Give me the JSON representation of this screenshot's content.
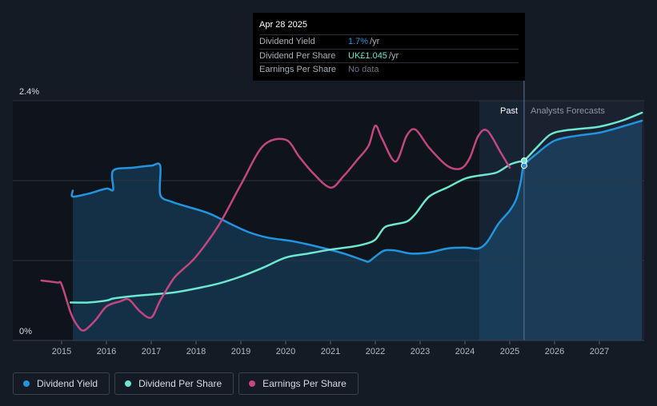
{
  "tooltip": {
    "date": "Apr 28 2025",
    "rows": [
      {
        "label": "Dividend Yield",
        "value": "1.7%",
        "unit": "/yr",
        "color": "#2394df"
      },
      {
        "label": "Dividend Per Share",
        "value": "UK£1.045",
        "unit": "/yr",
        "color": "#6ee7d0"
      },
      {
        "label": "Earnings Per Share",
        "value": "No data",
        "unit": "",
        "color": "#6b7280"
      }
    ]
  },
  "legend": [
    {
      "label": "Dividend Yield",
      "color": "#2394df"
    },
    {
      "label": "Dividend Per Share",
      "color": "#6ee7d0"
    },
    {
      "label": "Earnings Per Share",
      "color": "#c2467f"
    }
  ],
  "chart_data": {
    "type": "line",
    "y_axis_labels": {
      "top": "2.4%",
      "bottom": "0%"
    },
    "ylim_percent": [
      0,
      2.4
    ],
    "xlim": [
      2014.55,
      2027.95
    ],
    "x_ticks": [
      "2015",
      "2016",
      "2017",
      "2018",
      "2019",
      "2020",
      "2021",
      "2022",
      "2023",
      "2024",
      "2025",
      "2026",
      "2027"
    ],
    "past_label": "Past",
    "forecast_label": "Analysts Forecasts",
    "forecast_start": 2025.32,
    "highlight_start": 2024.32,
    "colors": {
      "background": "#151b24",
      "past_area": "#0f141b",
      "forecast_area": "#1a2230",
      "grid": "#2e3540",
      "axis_text": "#b4bbc4"
    },
    "series": [
      {
        "name": "Dividend Yield",
        "color": "#2394df",
        "fill": true,
        "unit": "% (of 2.4% scale)",
        "x": [
          2015.25,
          2015.25,
          2015.6,
          2016.0,
          2016.15,
          2016.15,
          2016.6,
          2017.0,
          2017.2,
          2017.2,
          2017.45,
          2017.8,
          2018.3,
          2018.8,
          2019.2,
          2019.6,
          2020.2,
          2020.7,
          2021.3,
          2021.75,
          2021.85,
          2022.0,
          2022.2,
          2022.45,
          2022.8,
          2023.2,
          2023.6,
          2024.0,
          2024.3,
          2024.5,
          2024.75,
          2025.0,
          2025.15,
          2025.25,
          2025.32,
          2025.6,
          2026.0,
          2026.5,
          2027.0,
          2027.5,
          2027.95
        ],
        "y": [
          1.5,
          1.44,
          1.47,
          1.52,
          1.51,
          1.7,
          1.73,
          1.75,
          1.75,
          1.46,
          1.39,
          1.34,
          1.27,
          1.16,
          1.08,
          1.03,
          0.99,
          0.94,
          0.87,
          0.8,
          0.79,
          0.84,
          0.9,
          0.9,
          0.87,
          0.88,
          0.92,
          0.93,
          0.92,
          0.99,
          1.17,
          1.3,
          1.42,
          1.6,
          1.75,
          1.87,
          2.0,
          2.05,
          2.08,
          2.14,
          2.2
        ]
      },
      {
        "name": "Dividend Per Share",
        "color": "#6ee7d0",
        "fill": false,
        "unit": "% (of 2.4% scale)",
        "x": [
          2015.2,
          2015.6,
          2016.0,
          2016.15,
          2016.5,
          2017.0,
          2017.5,
          2018.0,
          2018.5,
          2019.0,
          2019.5,
          2020.0,
          2020.5,
          2021.0,
          2021.5,
          2021.8,
          2022.0,
          2022.2,
          2022.4,
          2022.7,
          2022.9,
          2023.2,
          2023.6,
          2024.0,
          2024.3,
          2024.7,
          2025.0,
          2025.2,
          2025.32,
          2025.6,
          2025.9,
          2026.2,
          2026.6,
          2027.0,
          2027.5,
          2027.95
        ],
        "y": [
          0.38,
          0.38,
          0.4,
          0.42,
          0.44,
          0.46,
          0.48,
          0.52,
          0.57,
          0.64,
          0.73,
          0.83,
          0.87,
          0.91,
          0.94,
          0.97,
          1.01,
          1.13,
          1.16,
          1.19,
          1.27,
          1.44,
          1.53,
          1.62,
          1.65,
          1.68,
          1.76,
          1.79,
          1.8,
          1.93,
          2.06,
          2.1,
          2.12,
          2.14,
          2.2,
          2.28
        ]
      },
      {
        "name": "Earnings Per Share",
        "color": "#c2467f",
        "fill": false,
        "unit": "% (of 2.4% scale)",
        "x": [
          2014.55,
          2014.9,
          2015.0,
          2015.2,
          2015.35,
          2015.5,
          2015.75,
          2016.0,
          2016.3,
          2016.5,
          2016.75,
          2017.0,
          2017.2,
          2017.5,
          2017.7,
          2018.0,
          2018.5,
          2019.0,
          2019.5,
          2020.0,
          2020.3,
          2020.6,
          2021.0,
          2021.3,
          2021.6,
          2021.85,
          2022.0,
          2022.15,
          2022.45,
          2022.7,
          2022.9,
          2023.2,
          2023.6,
          2023.9,
          2024.1,
          2024.3,
          2024.5,
          2024.8,
          2025.0
        ],
        "y": [
          0.6,
          0.58,
          0.56,
          0.28,
          0.15,
          0.1,
          0.2,
          0.34,
          0.39,
          0.41,
          0.29,
          0.23,
          0.4,
          0.62,
          0.71,
          0.84,
          1.15,
          1.56,
          1.95,
          2.01,
          1.84,
          1.68,
          1.53,
          1.65,
          1.81,
          1.95,
          2.15,
          2.02,
          1.79,
          2.05,
          2.11,
          1.93,
          1.75,
          1.72,
          1.82,
          2.05,
          2.1,
          1.88,
          1.73
        ]
      }
    ]
  }
}
